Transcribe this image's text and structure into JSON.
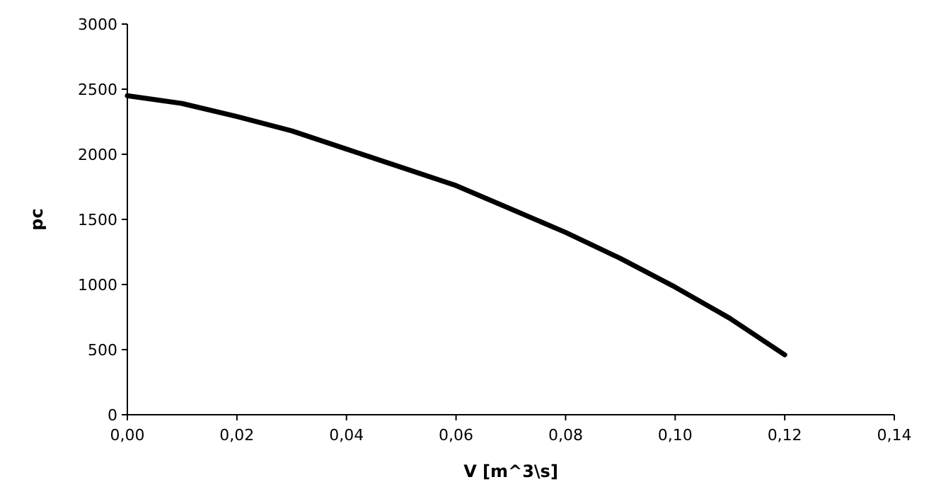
{
  "chart_data": {
    "type": "line",
    "xlabel": "V [m^3\\s]",
    "ylabel": "pc",
    "x": [
      0,
      0.01,
      0.02,
      0.03,
      0.04,
      0.05,
      0.06,
      0.07,
      0.08,
      0.09,
      0.1,
      0.11,
      0.12
    ],
    "series": [
      {
        "color": "#000000",
        "values": [
          2450,
          2390,
          2290,
          2180,
          2040,
          1900,
          1760,
          1580,
          1400,
          1200,
          980,
          740,
          460
        ]
      }
    ],
    "xlim": [
      0,
      0.14
    ],
    "xticks": [
      {
        "value": 0,
        "label": "0,00"
      },
      {
        "value": 0.02,
        "label": "0,02"
      },
      {
        "value": 0.04,
        "label": "0,04"
      },
      {
        "value": 0.06,
        "label": "0,06"
      },
      {
        "value": 0.08,
        "label": "0,08"
      },
      {
        "value": 0.1,
        "label": "0,10"
      },
      {
        "value": 0.12,
        "label": "0,12"
      },
      {
        "value": 0.14,
        "label": "0,14"
      }
    ],
    "ylim": [
      0,
      3000
    ],
    "yticks": [
      0,
      500,
      1000,
      1500,
      2000,
      2500,
      3000
    ],
    "grid": false,
    "marker": "none",
    "line_style": "solid"
  }
}
